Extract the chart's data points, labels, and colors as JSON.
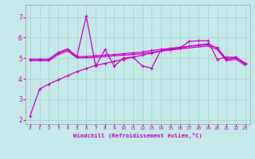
{
  "xlabel": "Windchill (Refroidissement éolien,°C)",
  "background_color": "#c5e8e8",
  "grid_color": "#aad4d4",
  "line_color": "#cc00cc",
  "xlim": [
    -0.5,
    23.5
  ],
  "ylim": [
    1.8,
    7.6
  ],
  "yticks": [
    2,
    3,
    4,
    5,
    6,
    7
  ],
  "xticks": [
    0,
    1,
    2,
    3,
    4,
    5,
    6,
    7,
    8,
    9,
    10,
    11,
    12,
    13,
    14,
    15,
    16,
    17,
    18,
    19,
    20,
    21,
    22,
    23
  ],
  "s_bottom_x": [
    0,
    1,
    2,
    3,
    4,
    5,
    6,
    7,
    8,
    9,
    10,
    11,
    12,
    13,
    14,
    15,
    16,
    17,
    18,
    19,
    20,
    21,
    22,
    23
  ],
  "s_bottom_y": [
    2.2,
    3.5,
    3.75,
    3.95,
    4.15,
    4.35,
    4.5,
    4.65,
    4.75,
    4.85,
    4.95,
    5.05,
    5.15,
    5.25,
    5.35,
    5.42,
    5.5,
    5.58,
    5.65,
    5.7,
    5.5,
    4.95,
    5.05,
    4.75
  ],
  "s_mid1_x": [
    0,
    1,
    2,
    3,
    4,
    5,
    6,
    7,
    8,
    9,
    10,
    11,
    12,
    13,
    14,
    15,
    16,
    17,
    18,
    19,
    20,
    21,
    22,
    23
  ],
  "s_mid1_y": [
    4.95,
    4.95,
    4.95,
    5.25,
    5.42,
    5.08,
    5.08,
    5.12,
    5.15,
    5.18,
    5.22,
    5.26,
    5.3,
    5.38,
    5.43,
    5.48,
    5.53,
    5.58,
    5.62,
    5.67,
    5.5,
    4.95,
    5.02,
    4.72
  ],
  "s_mid2_x": [
    0,
    1,
    2,
    3,
    4,
    5,
    6,
    7,
    8,
    9,
    10,
    11,
    12,
    13,
    14,
    15,
    16,
    17,
    18,
    19,
    20,
    21,
    22,
    23
  ],
  "s_mid2_y": [
    4.88,
    4.88,
    4.88,
    5.18,
    5.35,
    5.02,
    5.02,
    5.05,
    5.08,
    5.12,
    5.15,
    5.18,
    5.22,
    5.3,
    5.35,
    5.4,
    5.45,
    5.5,
    5.55,
    5.6,
    5.42,
    4.88,
    4.95,
    4.65
  ],
  "s_jagged_x": [
    0,
    1,
    2,
    3,
    4,
    5,
    6,
    7,
    8,
    9,
    10,
    11,
    12,
    13,
    14,
    15,
    16,
    17,
    18,
    19,
    20,
    21,
    22,
    23
  ],
  "s_jagged_y": [
    4.95,
    4.95,
    4.95,
    5.28,
    5.45,
    5.1,
    7.05,
    4.62,
    5.42,
    4.62,
    5.02,
    5.05,
    4.62,
    4.52,
    5.42,
    5.45,
    5.5,
    5.82,
    5.85,
    5.85,
    4.95,
    5.05,
    5.05,
    4.75
  ]
}
